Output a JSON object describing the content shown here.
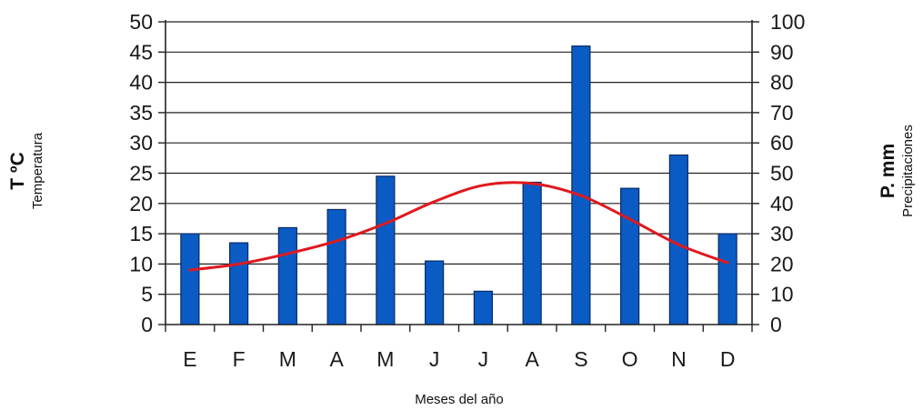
{
  "chart_data": {
    "type": "bar",
    "categories": [
      "E",
      "F",
      "M",
      "A",
      "M",
      "J",
      "J",
      "A",
      "S",
      "O",
      "N",
      "D"
    ],
    "xlabel": "Meses del año",
    "y_left": {
      "label": "T ºC",
      "sublabel": "Temperatura",
      "ylim": [
        0,
        50
      ],
      "ticks": [
        0,
        5,
        10,
        15,
        20,
        25,
        30,
        35,
        40,
        45,
        50
      ]
    },
    "y_right": {
      "label": "P. mm",
      "sublabel": "Precipitaciones",
      "ylim": [
        0,
        100
      ],
      "ticks": [
        0,
        10,
        20,
        30,
        40,
        50,
        60,
        70,
        80,
        90,
        100
      ]
    },
    "series": [
      {
        "type": "bar",
        "axis": "right",
        "color": "#0a5bc4",
        "values": [
          30,
          27,
          32,
          38,
          49,
          21,
          11,
          47,
          92,
          45,
          56,
          30
        ]
      },
      {
        "type": "line",
        "axis": "left",
        "color": "#e0191e",
        "values": [
          9,
          10,
          11.7,
          13.8,
          16.7,
          20.3,
          23,
          23.3,
          21.3,
          17.4,
          13.2,
          10.2
        ]
      }
    ],
    "grid": true
  }
}
